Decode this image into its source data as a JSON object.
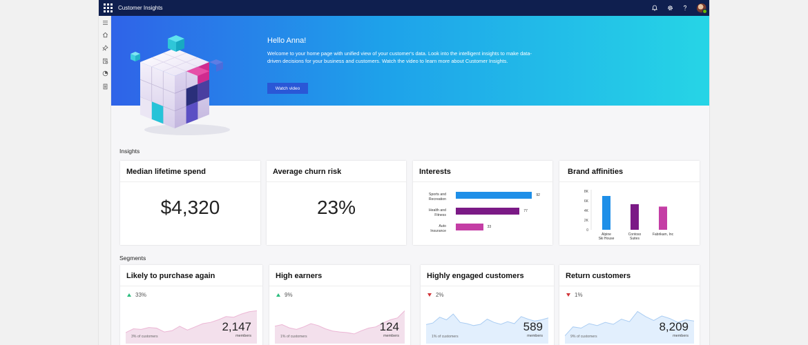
{
  "app": {
    "title": "Customer Insights"
  },
  "topbar": {
    "icons": [
      "bell-icon",
      "gear-icon",
      "help-icon",
      "avatar"
    ]
  },
  "leftnav": {
    "icons": [
      "hamburger-icon",
      "home-icon",
      "pin-icon",
      "data-icon",
      "segments-icon",
      "document-icon"
    ]
  },
  "hero": {
    "title": "Hello Anna!",
    "text": "Welcome to your home page with unified view of your customer's data. Look into the intelligent insights to make data-driven decisions for your business and customers.  Watch the video to learn more about Customer Insights.",
    "button_label": "Watch video"
  },
  "insights": {
    "label": "Insights",
    "median_lifetime_spend": {
      "title": "Median lifetime spend",
      "value": "$4,320"
    },
    "average_churn_risk": {
      "title": "Average churn risk",
      "value": "23%"
    },
    "interests": {
      "title": "Interests",
      "chart_data": {
        "type": "bar",
        "orientation": "horizontal",
        "categories": [
          "Sports and Recreation",
          "Health and Fitness",
          "Auto Insurance"
        ],
        "category_lines": [
          [
            "Sports and",
            "Recreation"
          ],
          [
            "Health and",
            "Fitness"
          ],
          [
            "Auto",
            "Insurance"
          ]
        ],
        "values": [
          92,
          77,
          33
        ],
        "colors": [
          "#1e8fe8",
          "#7b1a86",
          "#c43ea5"
        ],
        "xlim": [
          0,
          100
        ]
      }
    },
    "brand_affinities": {
      "title": "Brand affinities",
      "chart_data": {
        "type": "bar",
        "categories": [
          "Alpine Ski House",
          "Contoso Suites",
          "Fabrikam, Inc"
        ],
        "category_lines": [
          [
            "Alpine",
            "Ski House"
          ],
          [
            "Contoso",
            "Suites"
          ],
          [
            "Fabrikam, Inc"
          ]
        ],
        "values": [
          7000,
          5300,
          4800
        ],
        "colors": [
          "#1e8fe8",
          "#7b1a86",
          "#c43ea5"
        ],
        "y_ticks": [
          "8K",
          "6K",
          "4K",
          "2K",
          "0"
        ],
        "ylim": [
          0,
          8000
        ]
      }
    }
  },
  "segments": {
    "label": "Segments",
    "items": [
      {
        "title": "Likely to purchase again",
        "trend": "up",
        "change": "33%",
        "value": "2,147",
        "unit": "members",
        "share": "3% of customers",
        "color": "#f3e0ec",
        "line_color": "#ecb6d5",
        "chart_data": {
          "type": "area",
          "values": [
            30,
            42,
            40,
            46,
            44,
            32,
            36,
            50,
            38,
            48,
            58,
            62,
            70,
            80,
            78,
            88,
            95,
            98
          ]
        }
      },
      {
        "title": "High earners",
        "trend": "up",
        "change": "9%",
        "value": "124",
        "unit": "members",
        "share": "1% of customers",
        "color": "#f3e0ec",
        "line_color": "#ecb6d5",
        "chart_data": {
          "type": "area",
          "values": [
            50,
            55,
            45,
            40,
            48,
            58,
            52,
            42,
            35,
            32,
            30,
            26,
            36,
            44,
            48,
            60,
            70,
            76,
            98
          ]
        }
      },
      {
        "title": "Highly engaged customers",
        "trend": "down",
        "change": "2%",
        "value": "589",
        "unit": "members",
        "share": "1% of customers",
        "color": "#e2effd",
        "line_color": "#a9ccf2",
        "chart_data": {
          "type": "area",
          "values": [
            55,
            60,
            78,
            70,
            88,
            62,
            58,
            52,
            56,
            72,
            62,
            56,
            64,
            58,
            80,
            72,
            66,
            70,
            76
          ]
        }
      },
      {
        "title": "Return customers",
        "trend": "down",
        "change": "1%",
        "value": "8,209",
        "unit": "members",
        "share": "9% of customers",
        "color": "#e2effd",
        "line_color": "#a9ccf2",
        "chart_data": {
          "type": "area",
          "values": [
            20,
            48,
            44,
            58,
            52,
            62,
            56,
            72,
            64,
            96,
            80,
            68,
            82,
            74,
            62,
            70,
            66
          ]
        }
      }
    ]
  }
}
